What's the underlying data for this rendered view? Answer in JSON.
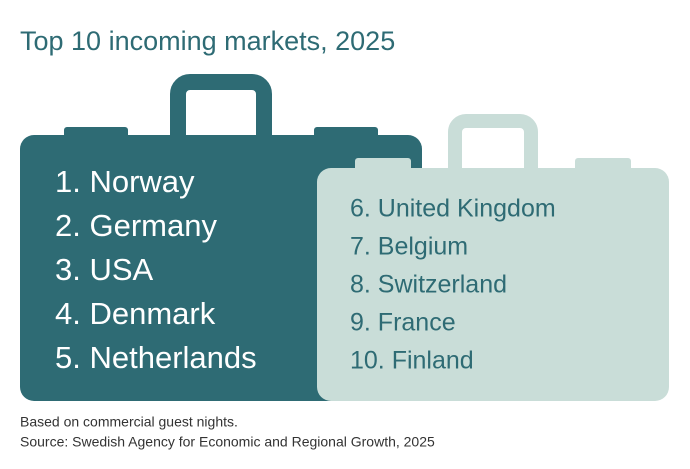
{
  "title": "Top 10 incoming markets, 2025",
  "suitcases": [
    {
      "items": [
        "1. Norway",
        "2. Germany",
        "3. USA",
        "4. Denmark",
        "5. Netherlands"
      ]
    },
    {
      "items": [
        "6. United Kingdom",
        "7. Belgium",
        "8. Switzerland",
        "9. France",
        "10. Finland"
      ]
    }
  ],
  "notes": [
    "Based on commercial guest nights.",
    "Source: Swedish Agency for Economic and Regional Growth, 2025"
  ]
}
